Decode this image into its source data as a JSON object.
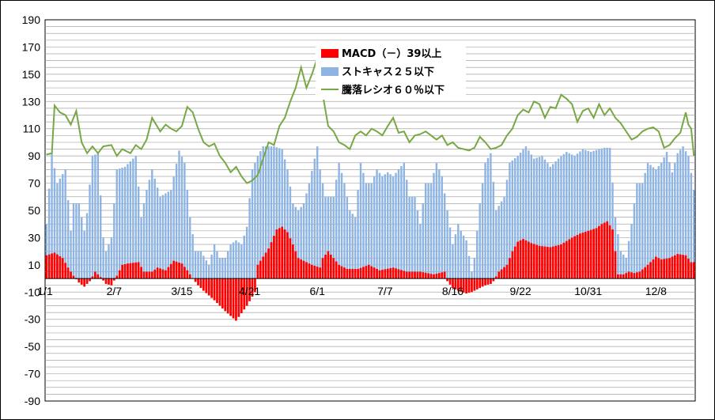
{
  "chart_data": {
    "type": "bar",
    "title": "",
    "xlabel": "",
    "ylabel": "",
    "ylim": [
      -90,
      190
    ],
    "y_ticks": [
      190,
      170,
      150,
      130,
      110,
      90,
      70,
      50,
      30,
      10,
      -10,
      -30,
      -50,
      -70,
      -90
    ],
    "x_tick_labels": [
      "1/1",
      "2/7",
      "3/15",
      "4/21",
      "6/1",
      "7/7",
      "8/16",
      "9/22",
      "10/31",
      "12/8"
    ],
    "x_tick_index": [
      0,
      25,
      50,
      75,
      100,
      125,
      150,
      175,
      200,
      225
    ],
    "n_points": 240,
    "grid": true,
    "legend_position": "top-center",
    "series": [
      {
        "name": "MACD（－）39以上",
        "kind": "bar",
        "color": "#ff0000",
        "anchors": [
          [
            0,
            17
          ],
          [
            3,
            19
          ],
          [
            6,
            15
          ],
          [
            8,
            8
          ],
          [
            10,
            2
          ],
          [
            12,
            -3
          ],
          [
            14,
            -6
          ],
          [
            16,
            -2
          ],
          [
            18,
            5
          ],
          [
            20,
            1
          ],
          [
            22,
            -4
          ],
          [
            24,
            -5
          ],
          [
            26,
            2
          ],
          [
            28,
            10
          ],
          [
            30,
            11
          ],
          [
            34,
            12
          ],
          [
            36,
            5
          ],
          [
            39,
            5
          ],
          [
            41,
            8
          ],
          [
            44,
            6
          ],
          [
            47,
            13
          ],
          [
            50,
            11
          ],
          [
            52,
            6
          ],
          [
            54,
            0
          ],
          [
            56,
            -5
          ],
          [
            58,
            -9
          ],
          [
            62,
            -16
          ],
          [
            66,
            -24
          ],
          [
            70,
            -31
          ],
          [
            74,
            -20
          ],
          [
            77,
            -10
          ],
          [
            78,
            10
          ],
          [
            82,
            22
          ],
          [
            85,
            36
          ],
          [
            87,
            38
          ],
          [
            89,
            34
          ],
          [
            91,
            25
          ],
          [
            93,
            15
          ],
          [
            96,
            12
          ],
          [
            98,
            10
          ],
          [
            101,
            8
          ],
          [
            102,
            15
          ],
          [
            104,
            20
          ],
          [
            106,
            15
          ],
          [
            108,
            10
          ],
          [
            111,
            7
          ],
          [
            115,
            7
          ],
          [
            119,
            10
          ],
          [
            123,
            6
          ],
          [
            128,
            8
          ],
          [
            133,
            5
          ],
          [
            138,
            5
          ],
          [
            143,
            3
          ],
          [
            147,
            5
          ],
          [
            148,
            -2
          ],
          [
            150,
            -7
          ],
          [
            152,
            -9
          ],
          [
            155,
            -11
          ],
          [
            157,
            -10
          ],
          [
            160,
            -7
          ],
          [
            162,
            -5
          ],
          [
            164,
            -4
          ],
          [
            165,
            -2
          ],
          [
            167,
            5
          ],
          [
            170,
            10
          ],
          [
            172,
            20
          ],
          [
            174,
            27
          ],
          [
            176,
            29
          ],
          [
            179,
            26
          ],
          [
            182,
            24
          ],
          [
            186,
            23
          ],
          [
            190,
            25
          ],
          [
            194,
            30
          ],
          [
            197,
            33
          ],
          [
            200,
            35
          ],
          [
            203,
            37
          ],
          [
            205,
            40
          ],
          [
            207,
            42
          ],
          [
            209,
            36
          ],
          [
            210,
            20
          ],
          [
            211,
            3
          ],
          [
            213,
            3
          ],
          [
            215,
            5
          ],
          [
            217,
            4
          ],
          [
            219,
            5
          ],
          [
            222,
            10
          ],
          [
            225,
            16
          ],
          [
            227,
            14
          ],
          [
            230,
            15
          ],
          [
            233,
            18
          ],
          [
            236,
            17
          ],
          [
            238,
            12
          ]
        ]
      },
      {
        "name": "ストキャス２５以下",
        "kind": "bar",
        "color": "#8db4e2",
        "anchors": [
          [
            0,
            40
          ],
          [
            2,
            92
          ],
          [
            4,
            70
          ],
          [
            7,
            80
          ],
          [
            9,
            35
          ],
          [
            10,
            55
          ],
          [
            12,
            55
          ],
          [
            14,
            35
          ],
          [
            15,
            48
          ],
          [
            17,
            90
          ],
          [
            19,
            92
          ],
          [
            21,
            30
          ],
          [
            22,
            20
          ],
          [
            24,
            30
          ],
          [
            26,
            80
          ],
          [
            29,
            82
          ],
          [
            33,
            90
          ],
          [
            35,
            45
          ],
          [
            37,
            65
          ],
          [
            39,
            80
          ],
          [
            42,
            60
          ],
          [
            46,
            65
          ],
          [
            49,
            94
          ],
          [
            51,
            85
          ],
          [
            53,
            45
          ],
          [
            55,
            20
          ],
          [
            57,
            20
          ],
          [
            60,
            10
          ],
          [
            62,
            25
          ],
          [
            64,
            15
          ],
          [
            66,
            15
          ],
          [
            68,
            25
          ],
          [
            70,
            28
          ],
          [
            72,
            25
          ],
          [
            74,
            38
          ],
          [
            76,
            80
          ],
          [
            78,
            90
          ],
          [
            80,
            97
          ],
          [
            84,
            97
          ],
          [
            87,
            95
          ],
          [
            89,
            80
          ],
          [
            91,
            55
          ],
          [
            93,
            50
          ],
          [
            95,
            55
          ],
          [
            97,
            70
          ],
          [
            99,
            88
          ],
          [
            100,
            97
          ],
          [
            101,
            80
          ],
          [
            103,
            60
          ],
          [
            106,
            60
          ],
          [
            108,
            85
          ],
          [
            110,
            70
          ],
          [
            112,
            50
          ],
          [
            114,
            45
          ],
          [
            116,
            85
          ],
          [
            118,
            70
          ],
          [
            120,
            70
          ],
          [
            122,
            80
          ],
          [
            124,
            75
          ],
          [
            126,
            78
          ],
          [
            128,
            75
          ],
          [
            130,
            80
          ],
          [
            132,
            85
          ],
          [
            134,
            60
          ],
          [
            136,
            60
          ],
          [
            138,
            40
          ],
          [
            140,
            70
          ],
          [
            142,
            70
          ],
          [
            144,
            85
          ],
          [
            146,
            75
          ],
          [
            148,
            50
          ],
          [
            150,
            25
          ],
          [
            152,
            40
          ],
          [
            153,
            35
          ],
          [
            155,
            28
          ],
          [
            157,
            5
          ],
          [
            158,
            15
          ],
          [
            160,
            55
          ],
          [
            162,
            85
          ],
          [
            164,
            92
          ],
          [
            166,
            50
          ],
          [
            169,
            60
          ],
          [
            171,
            85
          ],
          [
            174,
            90
          ],
          [
            177,
            97
          ],
          [
            180,
            88
          ],
          [
            183,
            90
          ],
          [
            186,
            82
          ],
          [
            189,
            88
          ],
          [
            192,
            93
          ],
          [
            195,
            90
          ],
          [
            198,
            95
          ],
          [
            201,
            93
          ],
          [
            204,
            95
          ],
          [
            206,
            96
          ],
          [
            208,
            96
          ],
          [
            210,
            45
          ],
          [
            212,
            20
          ],
          [
            214,
            15
          ],
          [
            216,
            40
          ],
          [
            218,
            70
          ],
          [
            220,
            70
          ],
          [
            222,
            85
          ],
          [
            225,
            80
          ],
          [
            227,
            85
          ],
          [
            229,
            93
          ],
          [
            231,
            78
          ],
          [
            233,
            92
          ],
          [
            235,
            97
          ],
          [
            237,
            90
          ],
          [
            239,
            65
          ]
        ]
      },
      {
        "name": "騰落レシオ６０％以下",
        "kind": "line",
        "color": "#77a844",
        "anchors": [
          [
            0,
            91
          ],
          [
            2,
            92
          ],
          [
            3,
            127
          ],
          [
            5,
            122
          ],
          [
            7,
            120
          ],
          [
            9,
            113
          ],
          [
            11,
            123
          ],
          [
            13,
            100
          ],
          [
            15,
            92
          ],
          [
            17,
            97
          ],
          [
            19,
            92
          ],
          [
            21,
            97
          ],
          [
            24,
            98
          ],
          [
            26,
            90
          ],
          [
            28,
            95
          ],
          [
            31,
            92
          ],
          [
            33,
            98
          ],
          [
            35,
            95
          ],
          [
            37,
            102
          ],
          [
            39,
            118
          ],
          [
            42,
            108
          ],
          [
            44,
            113
          ],
          [
            46,
            110
          ],
          [
            48,
            108
          ],
          [
            50,
            112
          ],
          [
            52,
            126
          ],
          [
            54,
            122
          ],
          [
            56,
            110
          ],
          [
            58,
            100
          ],
          [
            60,
            97
          ],
          [
            62,
            99
          ],
          [
            64,
            90
          ],
          [
            66,
            85
          ],
          [
            68,
            78
          ],
          [
            70,
            82
          ],
          [
            72,
            75
          ],
          [
            74,
            70
          ],
          [
            76,
            72
          ],
          [
            78,
            76
          ],
          [
            80,
            88
          ],
          [
            82,
            100
          ],
          [
            84,
            98
          ],
          [
            86,
            112
          ],
          [
            88,
            118
          ],
          [
            90,
            130
          ],
          [
            92,
            140
          ],
          [
            94,
            155
          ],
          [
            96,
            140
          ],
          [
            98,
            150
          ],
          [
            100,
            162
          ],
          [
            102,
            135
          ],
          [
            104,
            112
          ],
          [
            106,
            108
          ],
          [
            108,
            100
          ],
          [
            110,
            98
          ],
          [
            112,
            95
          ],
          [
            114,
            105
          ],
          [
            116,
            108
          ],
          [
            118,
            105
          ],
          [
            120,
            110
          ],
          [
            122,
            108
          ],
          [
            124,
            105
          ],
          [
            126,
            112
          ],
          [
            128,
            118
          ],
          [
            130,
            107
          ],
          [
            132,
            108
          ],
          [
            134,
            100
          ],
          [
            136,
            105
          ],
          [
            138,
            106
          ],
          [
            140,
            108
          ],
          [
            142,
            105
          ],
          [
            144,
            102
          ],
          [
            146,
            105
          ],
          [
            148,
            98
          ],
          [
            150,
            100
          ],
          [
            152,
            96
          ],
          [
            154,
            95
          ],
          [
            156,
            94
          ],
          [
            158,
            96
          ],
          [
            160,
            104
          ],
          [
            162,
            100
          ],
          [
            164,
            95
          ],
          [
            166,
            96
          ],
          [
            168,
            98
          ],
          [
            170,
            105
          ],
          [
            172,
            110
          ],
          [
            174,
            120
          ],
          [
            176,
            124
          ],
          [
            178,
            122
          ],
          [
            180,
            130
          ],
          [
            182,
            128
          ],
          [
            184,
            118
          ],
          [
            186,
            126
          ],
          [
            188,
            125
          ],
          [
            190,
            135
          ],
          [
            192,
            132
          ],
          [
            194,
            128
          ],
          [
            196,
            115
          ],
          [
            198,
            123
          ],
          [
            200,
            125
          ],
          [
            202,
            118
          ],
          [
            204,
            128
          ],
          [
            206,
            120
          ],
          [
            208,
            125
          ],
          [
            210,
            118
          ],
          [
            212,
            114
          ],
          [
            214,
            108
          ],
          [
            216,
            102
          ],
          [
            218,
            104
          ],
          [
            220,
            108
          ],
          [
            222,
            110
          ],
          [
            224,
            111
          ],
          [
            226,
            108
          ],
          [
            228,
            96
          ],
          [
            230,
            98
          ],
          [
            232,
            103
          ],
          [
            234,
            107
          ],
          [
            236,
            122
          ],
          [
            237,
            113
          ],
          [
            238,
            110
          ],
          [
            239,
            90
          ]
        ]
      }
    ]
  }
}
